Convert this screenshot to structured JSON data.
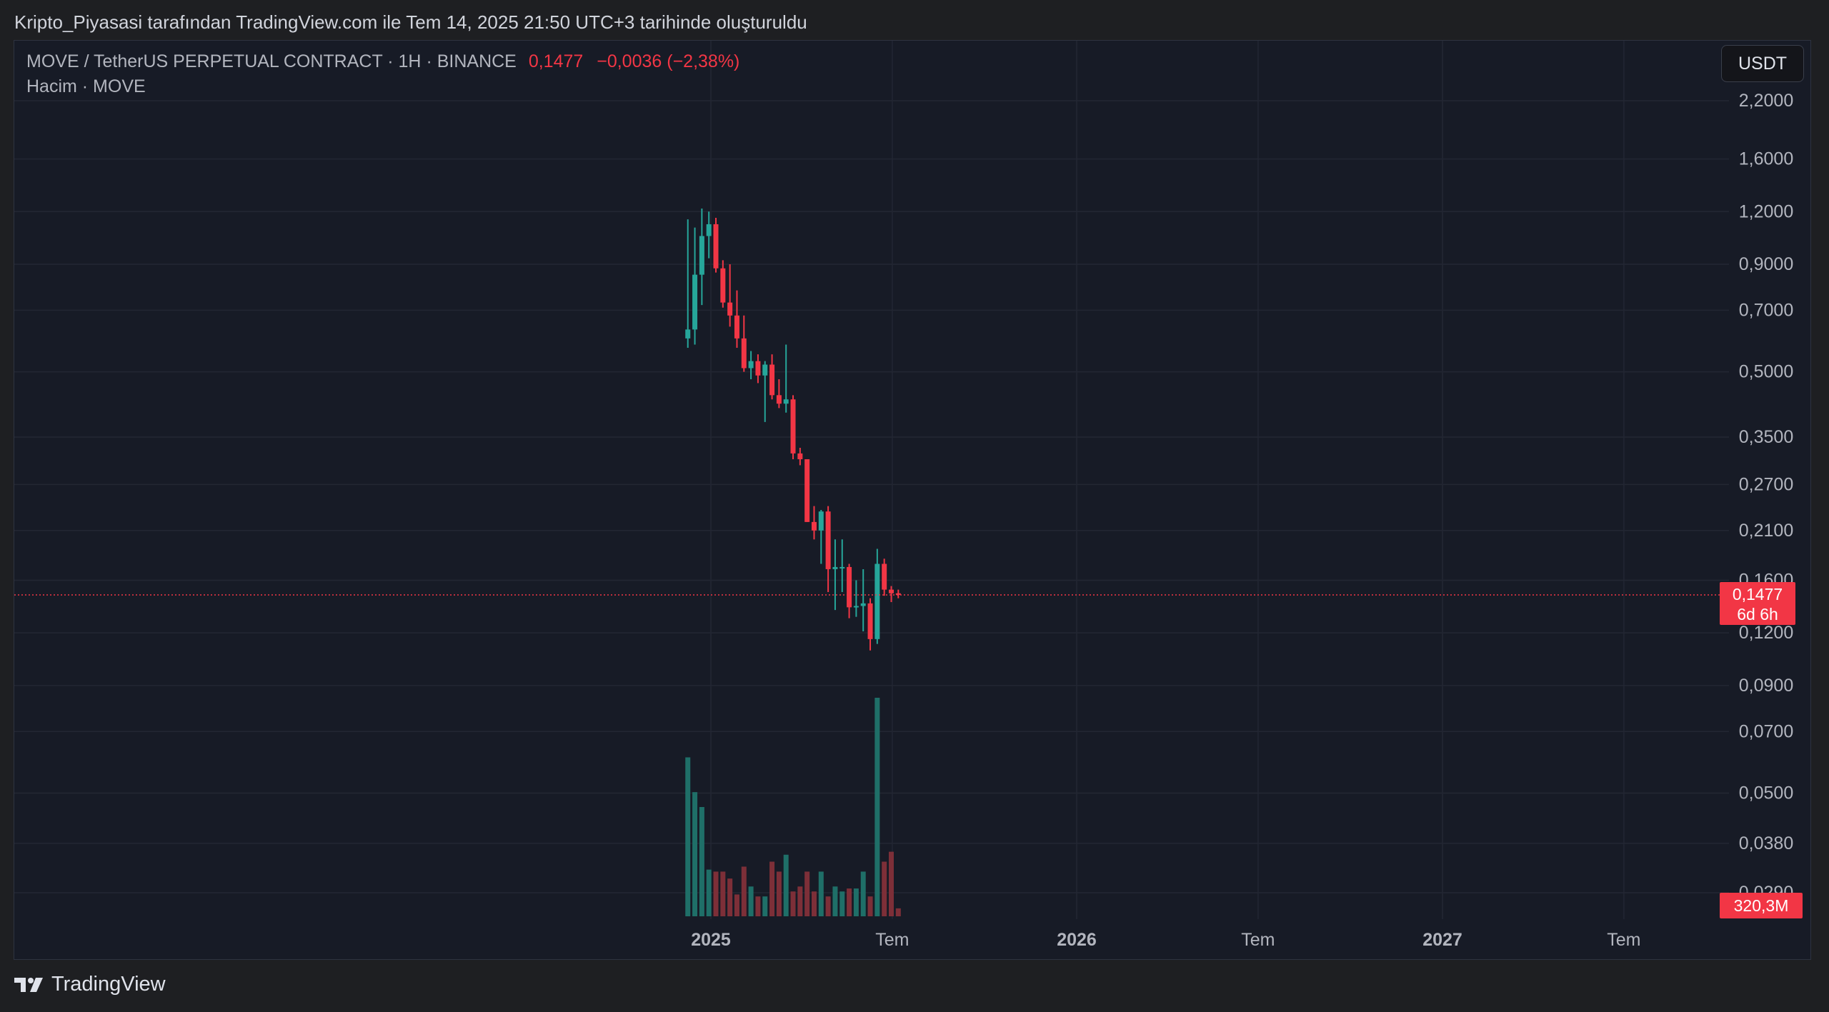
{
  "caption": "Kripto_Piyasasi tarafından TradingView.com ile Tem 14, 2025 21:50 UTC+3 tarihinde oluşturuldu",
  "legend": {
    "symbol": "MOVE / TetherUS PERPETUAL CONTRACT",
    "sep1": "·",
    "interval": "1H",
    "sep2": "·",
    "exchange": "BINANCE",
    "price": "0,1477",
    "change": "−0,0036 (−2,38%)",
    "volume_label": "Hacim · MOVE"
  },
  "currency_button": "USDT",
  "brand": "TradingView",
  "colors": {
    "up": "#26a69a",
    "down": "#f23645",
    "vol_up": "#1f6f68",
    "vol_down": "#7d2f38",
    "grid": "#232733",
    "axis_text": "#b2b5be",
    "badge": "#f23645"
  },
  "chart_data": {
    "type": "candlestick",
    "y_scale": "log",
    "y_tick_labels": [
      "2,2000",
      "1,6000",
      "1,2000",
      "0,9000",
      "0,7000",
      "0,5000",
      "0,3500",
      "0,2700",
      "0,2100",
      "0,1600",
      "0,1200",
      "0,0900",
      "0,0700",
      "0,0500",
      "0,0380",
      "0,0290"
    ],
    "y_ticks": [
      2.2,
      1.6,
      1.2,
      0.9,
      0.7,
      0.5,
      0.35,
      0.27,
      0.21,
      0.16,
      0.12,
      0.09,
      0.07,
      0.05,
      0.038,
      0.029
    ],
    "x_tick_labels": [
      {
        "label": "2025",
        "bold": true,
        "date": "2025-01-01"
      },
      {
        "label": "Tem",
        "bold": false,
        "date": "2025-07-01"
      },
      {
        "label": "2026",
        "bold": true,
        "date": "2026-01-01"
      },
      {
        "label": "Tem",
        "bold": false,
        "date": "2026-07-01"
      },
      {
        "label": "2027",
        "bold": true,
        "date": "2027-01-01"
      },
      {
        "label": "Tem",
        "bold": false,
        "date": "2027-07-01"
      }
    ],
    "last_price": 0.1477,
    "last_price_label": "0,1477",
    "countdown_label": "6d 6h",
    "volume_label": "320,3M",
    "candles": [
      {
        "date": "2024-12-09",
        "o": 0.6,
        "h": 1.15,
        "l": 0.57,
        "c": 0.63,
        "v": 1.6
      },
      {
        "date": "2024-12-16",
        "o": 0.63,
        "h": 1.1,
        "l": 0.58,
        "c": 0.85,
        "v": 1.25
      },
      {
        "date": "2024-12-23",
        "o": 0.85,
        "h": 1.22,
        "l": 0.72,
        "c": 1.05,
        "v": 1.1
      },
      {
        "date": "2024-12-30",
        "o": 1.05,
        "h": 1.2,
        "l": 0.93,
        "c": 1.12,
        "v": 0.47
      },
      {
        "date": "2025-01-06",
        "o": 1.12,
        "h": 1.16,
        "l": 0.86,
        "c": 0.88,
        "v": 0.45
      },
      {
        "date": "2025-01-13",
        "o": 0.88,
        "h": 0.92,
        "l": 0.71,
        "c": 0.73,
        "v": 0.45
      },
      {
        "date": "2025-01-20",
        "o": 0.73,
        "h": 0.9,
        "l": 0.64,
        "c": 0.68,
        "v": 0.38
      },
      {
        "date": "2025-01-27",
        "o": 0.68,
        "h": 0.78,
        "l": 0.57,
        "c": 0.6,
        "v": 0.22
      },
      {
        "date": "2025-02-03",
        "o": 0.6,
        "h": 0.68,
        "l": 0.5,
        "c": 0.51,
        "v": 0.5
      },
      {
        "date": "2025-02-10",
        "o": 0.51,
        "h": 0.56,
        "l": 0.48,
        "c": 0.53,
        "v": 0.3
      },
      {
        "date": "2025-02-17",
        "o": 0.53,
        "h": 0.55,
        "l": 0.47,
        "c": 0.49,
        "v": 0.2
      },
      {
        "date": "2025-02-24",
        "o": 0.49,
        "h": 0.53,
        "l": 0.38,
        "c": 0.52,
        "v": 0.2
      },
      {
        "date": "2025-03-03",
        "o": 0.52,
        "h": 0.55,
        "l": 0.43,
        "c": 0.44,
        "v": 0.55
      },
      {
        "date": "2025-03-10",
        "o": 0.44,
        "h": 0.48,
        "l": 0.41,
        "c": 0.42,
        "v": 0.45
      },
      {
        "date": "2025-03-17",
        "o": 0.42,
        "h": 0.58,
        "l": 0.4,
        "c": 0.43,
        "v": 0.62
      },
      {
        "date": "2025-03-24",
        "o": 0.43,
        "h": 0.44,
        "l": 0.31,
        "c": 0.32,
        "v": 0.25
      },
      {
        "date": "2025-03-31",
        "o": 0.32,
        "h": 0.33,
        "l": 0.3,
        "c": 0.31,
        "v": 0.3
      },
      {
        "date": "2025-04-07",
        "o": 0.31,
        "h": 0.31,
        "l": 0.22,
        "c": 0.22,
        "v": 0.45
      },
      {
        "date": "2025-04-14",
        "o": 0.22,
        "h": 0.24,
        "l": 0.2,
        "c": 0.21,
        "v": 0.25
      },
      {
        "date": "2025-04-21",
        "o": 0.21,
        "h": 0.235,
        "l": 0.175,
        "c": 0.233,
        "v": 0.45
      },
      {
        "date": "2025-04-28",
        "o": 0.233,
        "h": 0.24,
        "l": 0.15,
        "c": 0.17,
        "v": 0.2
      },
      {
        "date": "2025-05-05",
        "o": 0.17,
        "h": 0.2,
        "l": 0.136,
        "c": 0.172,
        "v": 0.3
      },
      {
        "date": "2025-05-12",
        "o": 0.172,
        "h": 0.2,
        "l": 0.15,
        "c": 0.172,
        "v": 0.25
      },
      {
        "date": "2025-05-19",
        "o": 0.172,
        "h": 0.175,
        "l": 0.13,
        "c": 0.138,
        "v": 0.28
      },
      {
        "date": "2025-05-26",
        "o": 0.138,
        "h": 0.16,
        "l": 0.131,
        "c": 0.139,
        "v": 0.28
      },
      {
        "date": "2025-06-02",
        "o": 0.139,
        "h": 0.17,
        "l": 0.121,
        "c": 0.141,
        "v": 0.45
      },
      {
        "date": "2025-06-09",
        "o": 0.141,
        "h": 0.145,
        "l": 0.109,
        "c": 0.116,
        "v": 0.2
      },
      {
        "date": "2025-06-16",
        "o": 0.116,
        "h": 0.19,
        "l": 0.113,
        "c": 0.175,
        "v": 2.2
      },
      {
        "date": "2025-06-23",
        "o": 0.175,
        "h": 0.18,
        "l": 0.147,
        "c": 0.152,
        "v": 0.55
      },
      {
        "date": "2025-06-30",
        "o": 0.152,
        "h": 0.155,
        "l": 0.142,
        "c": 0.149,
        "v": 0.65
      },
      {
        "date": "2025-07-07",
        "o": 0.149,
        "h": 0.152,
        "l": 0.145,
        "c": 0.1477,
        "v": 0.08
      }
    ]
  }
}
